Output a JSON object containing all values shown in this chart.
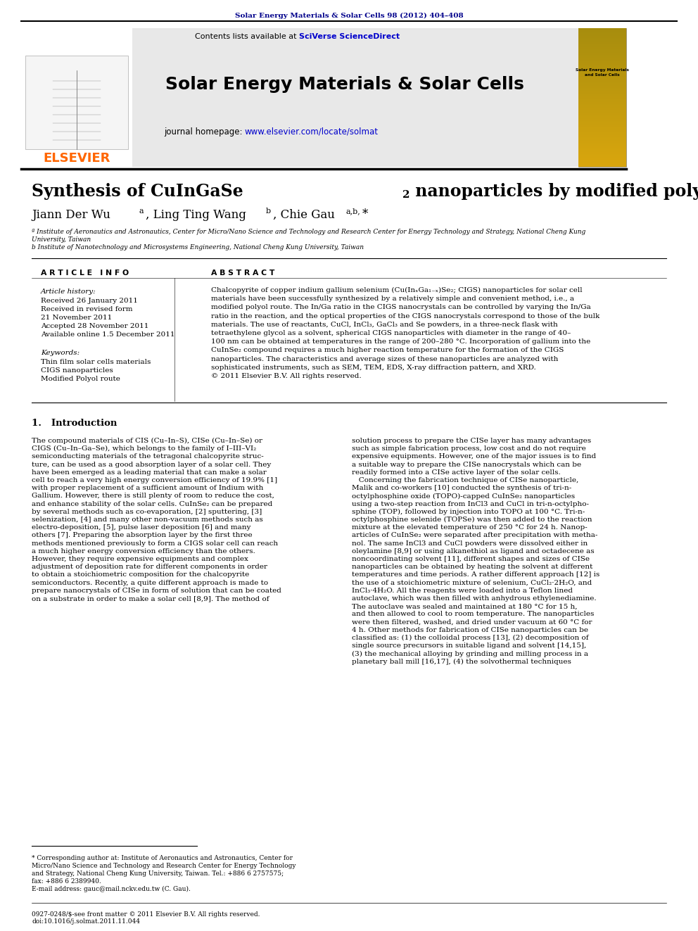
{
  "page_bg": "#ffffff",
  "top_journal_ref": "Solar Energy Materials & Solar Cells 98 (2012) 404–408",
  "top_journal_ref_color": "#00008B",
  "header_bg": "#e8e8e8",
  "header_text_journal": "Solar Energy Materials & Solar Cells",
  "header_contents_text": "Contents lists available at ",
  "header_sciverse": "SciVerse ScienceDirect",
  "header_sciverse_color": "#0000CC",
  "header_homepage_text": "journal homepage: ",
  "header_homepage_url": "www.elsevier.com/locate/solmat",
  "header_homepage_url_color": "#0000CC",
  "elsevier_color": "#FF6600",
  "article_info_label": "A R T I C L E   I N F O",
  "abstract_label": "A B S T R A C T",
  "article_history_label": "Article history:",
  "keywords_label": "Keywords:",
  "keyword_1": "Thin film solar cells materials",
  "keyword_2": "CIGS nanoparticles",
  "keyword_3": "Modified Polyol route",
  "intro_heading": "1.   Introduction",
  "footnote_footer": "0927-0248/$-see front matter © 2011 Elsevier B.V. All rights reserved.\ndoi:10.1016/j.solmat.2011.11.044"
}
